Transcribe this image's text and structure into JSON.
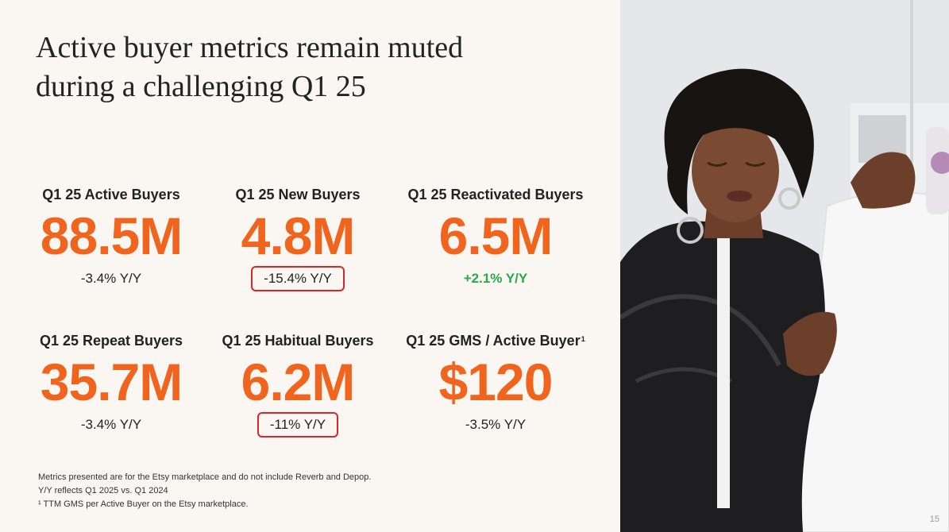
{
  "slide": {
    "title_line1": "Active buyer metrics remain muted",
    "title_line2": "during a challenging Q1 25",
    "page_number": "15"
  },
  "metrics": [
    {
      "label": "Q1 25 Active Buyers",
      "value": "88.5M",
      "change": "-3.4% Y/Y",
      "style": "neutral",
      "circled": false
    },
    {
      "label": "Q1 25 New Buyers",
      "value": "4.8M",
      "change": "-15.4% Y/Y",
      "style": "neutral",
      "circled": true
    },
    {
      "label": "Q1 25 Reactivated Buyers",
      "value": "6.5M",
      "change": "+2.1% Y/Y",
      "style": "positive",
      "circled": false
    },
    {
      "label": "Q1 25 Repeat Buyers",
      "value": "35.7M",
      "change": "-3.4% Y/Y",
      "style": "neutral",
      "circled": false
    },
    {
      "label": "Q1 25 Habitual Buyers",
      "value": "6.2M",
      "change": "-11% Y/Y",
      "style": "neutral",
      "circled": true
    },
    {
      "label": "Q1 25 GMS / Active Buyer",
      "label_superscript": "1",
      "value": "$120",
      "change": "-3.5% Y/Y",
      "style": "neutral",
      "circled": false
    }
  ],
  "footnotes": [
    "Metrics presented are for the Etsy marketplace and do not include Reverb and Depop.",
    "Y/Y reflects Q1 2025 vs. Q1 2024",
    "¹ TTM GMS per Active Buyer on the Etsy marketplace."
  ],
  "colors": {
    "accent_orange": "#f1641e",
    "positive_green": "#2aa84a",
    "highlight_red": "#d9262c",
    "background": "#faf7f3"
  }
}
